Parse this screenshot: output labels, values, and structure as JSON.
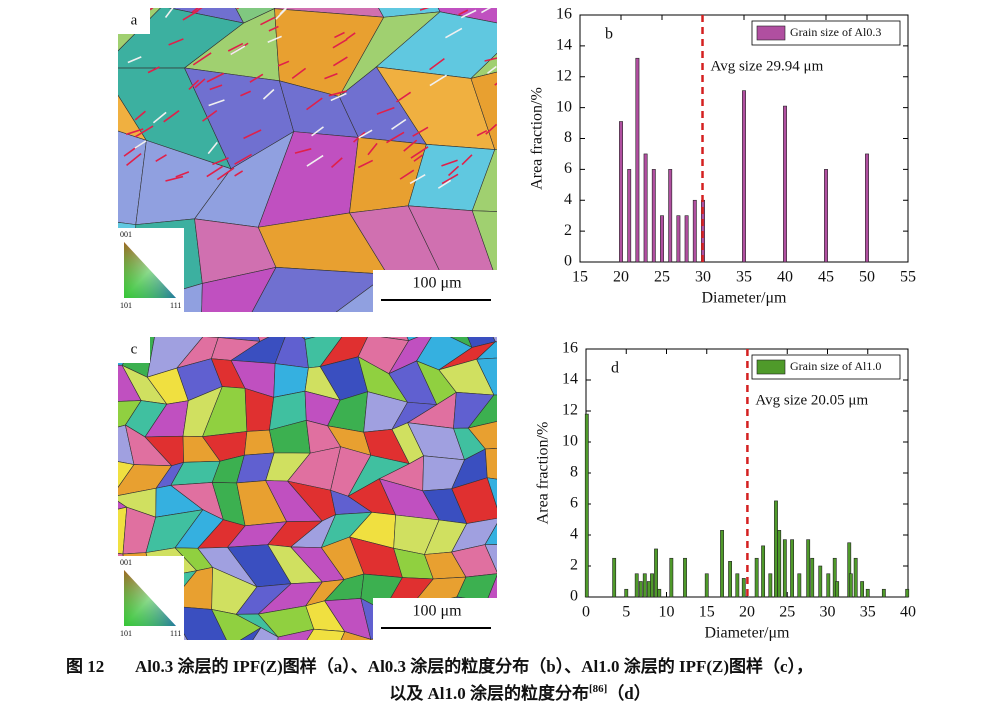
{
  "figure": {
    "panels": [
      {
        "label": "a",
        "scale_bar": "100 μm",
        "key": [
          "001",
          "101",
          "111"
        ]
      },
      {
        "label": "c",
        "scale_bar": "100 μm",
        "key": [
          "001",
          "101",
          "111"
        ]
      }
    ],
    "caption": {
      "number": "图 12",
      "line1": "Al0.3 涂层的 IPF(Z)图样（a）、Al0.3 涂层的粒度分布（b）、Al1.0 涂层的 IPF(Z)图样（c），",
      "line2": "以及 Al1.0 涂层的粒度分布",
      "ref": "[86]",
      "line2_end": "（d）"
    }
  },
  "chart_data": [
    {
      "type": "bar",
      "panel_label": "b",
      "xlabel": "Diameter/μm",
      "ylabel": "Area fraction/%",
      "xlim": [
        15,
        55
      ],
      "xticks": [
        15,
        20,
        25,
        30,
        35,
        40,
        45,
        50,
        55
      ],
      "ylim": [
        0,
        16
      ],
      "yticks": [
        0,
        2,
        4,
        6,
        8,
        10,
        12,
        14,
        16
      ],
      "legend": "upper right",
      "series": [
        {
          "name": "Grain size of Al0.3",
          "color": "#b04fa0",
          "x": [
            20,
            21,
            22,
            23,
            24,
            25,
            26,
            27,
            28,
            29,
            30,
            35,
            40,
            45,
            50
          ],
          "values": [
            9.1,
            6,
            13.2,
            7,
            6,
            3,
            6,
            3,
            3,
            4,
            4,
            11.1,
            10.1,
            6,
            7
          ]
        }
      ],
      "avg_line": {
        "x": 29.94,
        "label": "Avg size 29.94 μm",
        "color": "#d42020"
      }
    },
    {
      "type": "bar",
      "panel_label": "d",
      "xlabel": "Diameter/μm",
      "ylabel": "Area fraction/%",
      "xlim": [
        0,
        40
      ],
      "xticks": [
        0,
        5,
        10,
        15,
        20,
        25,
        30,
        35,
        40
      ],
      "ylim": [
        0,
        16
      ],
      "yticks": [
        0,
        2,
        4,
        6,
        8,
        10,
        12,
        14,
        16
      ],
      "legend": "upper right",
      "series": [
        {
          "name": "Grain size of Al1.0",
          "color": "#4f9a2a",
          "x": [
            0.1,
            3.5,
            5,
            6.3,
            6.8,
            7.3,
            7.8,
            8.2,
            8.7,
            9.1,
            10.6,
            12.3,
            15.0,
            16.9,
            17.9,
            18.8,
            19.6,
            21.2,
            22.0,
            22.9,
            23.6,
            24.0,
            24.7,
            25.6,
            26.5,
            27.6,
            28.1,
            29.1,
            30.1,
            30.9,
            31.2,
            32.7,
            32.9,
            33.5,
            34.3,
            35.0,
            37.0,
            39.9
          ],
          "values": [
            11.8,
            2.5,
            0.5,
            1.5,
            1,
            1.5,
            1,
            1.5,
            3.1,
            0.5,
            2.5,
            2.5,
            1.5,
            4.3,
            2.3,
            1.5,
            1.2,
            2.5,
            3.3,
            1.5,
            6.2,
            4.3,
            3.7,
            3.7,
            1.5,
            3.7,
            2.5,
            2.0,
            1.5,
            2.5,
            1.0,
            3.5,
            1.5,
            2.5,
            1.0,
            0.5,
            0.5,
            0.5
          ]
        }
      ],
      "avg_line": {
        "x": 20.05,
        "label": "Avg size 20.05 μm",
        "color": "#d42020"
      }
    }
  ]
}
